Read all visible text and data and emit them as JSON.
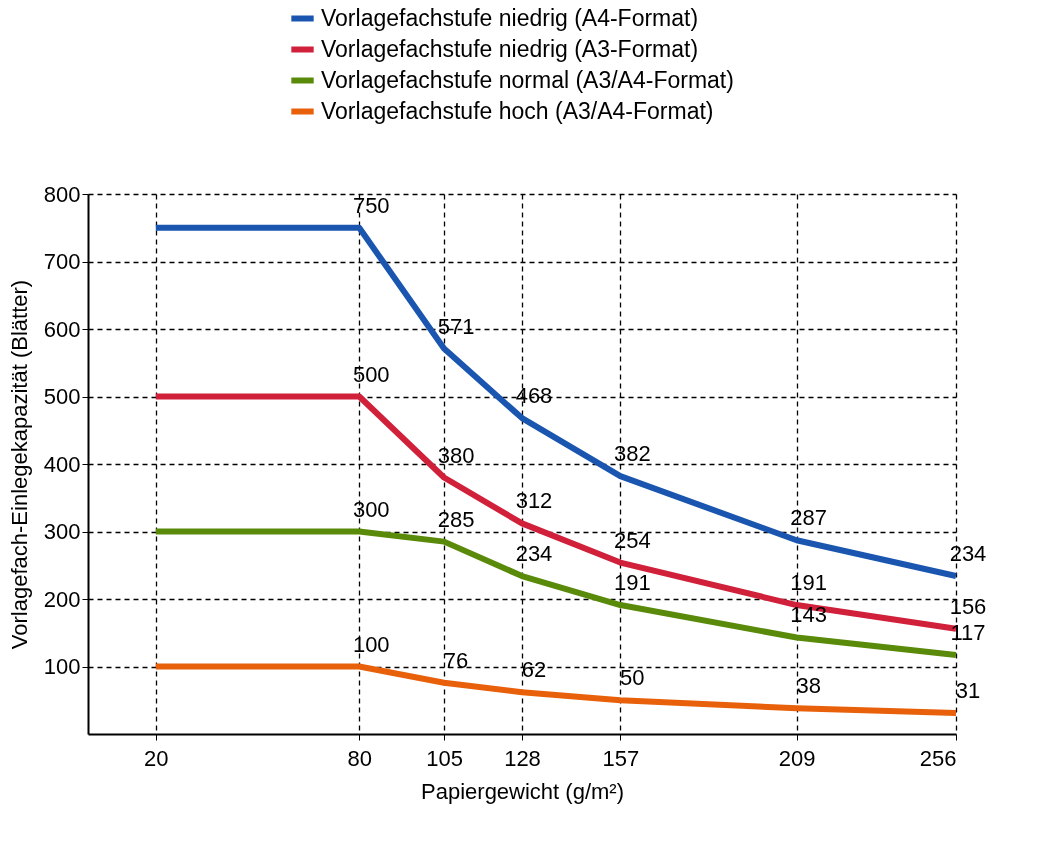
{
  "chart_data": {
    "type": "line",
    "xlabel": "Papiergewicht (g/m²)",
    "ylabel": "Vorlagefach-Einlegekapazität (Blätter)",
    "x": [
      20,
      80,
      105,
      128,
      157,
      209,
      256
    ],
    "xlim": [
      0,
      256
    ],
    "xticks": [
      20,
      80,
      105,
      128,
      157,
      209,
      256
    ],
    "ylim": [
      0,
      800
    ],
    "yticks": [
      100,
      200,
      300,
      400,
      500,
      600,
      700,
      800
    ],
    "grid": true,
    "legend": "top right",
    "line_style": "solid",
    "marker": "none",
    "series": [
      {
        "name": "Vorlagefachstufe niedrig (A4-Format)",
        "color": "#1a56b0",
        "values": [
          750,
          750,
          571,
          468,
          382,
          287,
          234
        ],
        "value_labels": [
          null,
          "750",
          "571",
          "468",
          "382",
          "287",
          "234"
        ]
      },
      {
        "name": "Vorlagefachstufe niedrig (A3-Format)",
        "color": "#d0203a",
        "values": [
          500,
          500,
          380,
          312,
          254,
          191,
          156
        ],
        "value_labels": [
          null,
          "500",
          "380",
          "312",
          "254",
          "191",
          "156"
        ]
      },
      {
        "name": "Vorlagefachstufe normal (A3/A4-Format)",
        "color": "#5a8a0a",
        "values": [
          300,
          300,
          285,
          234,
          191,
          143,
          117
        ],
        "value_labels": [
          null,
          "300",
          "285",
          "234",
          "191",
          "143",
          "117"
        ]
      },
      {
        "name": "Vorlagefachstufe hoch (A3/A4-Format)",
        "color": "#e8600a",
        "values": [
          100,
          100,
          76,
          62,
          50,
          38,
          31
        ],
        "value_labels": [
          null,
          "100",
          "76",
          "62",
          "50",
          "38",
          "31"
        ]
      }
    ]
  }
}
